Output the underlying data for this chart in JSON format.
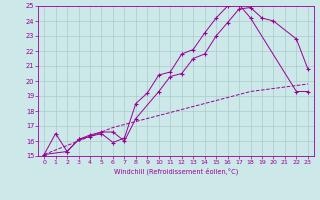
{
  "xlabel": "Windchill (Refroidissement éolien,°C)",
  "bg_color": "#cce8e8",
  "line_color": "#990099",
  "grid_color": "#aacccc",
  "xlim": [
    -0.5,
    23.5
  ],
  "ylim": [
    15,
    25
  ],
  "yticks": [
    15,
    16,
    17,
    18,
    19,
    20,
    21,
    22,
    23,
    24,
    25
  ],
  "xticks": [
    0,
    1,
    2,
    3,
    4,
    5,
    6,
    7,
    8,
    9,
    10,
    11,
    12,
    13,
    14,
    15,
    16,
    17,
    18,
    19,
    20,
    21,
    22,
    23
  ],
  "line1_x": [
    0,
    1,
    2,
    3,
    4,
    5,
    6,
    7,
    8,
    9,
    10,
    11,
    12,
    13,
    14,
    15,
    16,
    17,
    18,
    22,
    23
  ],
  "line1_y": [
    15.1,
    16.5,
    15.3,
    16.1,
    16.3,
    16.5,
    15.9,
    16.2,
    18.5,
    19.2,
    20.4,
    20.6,
    21.8,
    22.1,
    23.2,
    24.2,
    25.0,
    25.1,
    24.2,
    19.3,
    19.3
  ],
  "line2_x": [
    0,
    2,
    3,
    4,
    5,
    6,
    7,
    8,
    10,
    11,
    12,
    13,
    14,
    15,
    16,
    17,
    18,
    19,
    20,
    22,
    23
  ],
  "line2_y": [
    15.1,
    15.3,
    16.1,
    16.4,
    16.6,
    16.6,
    16.0,
    17.5,
    19.3,
    20.3,
    20.5,
    21.5,
    21.8,
    23.0,
    23.9,
    24.8,
    24.9,
    24.2,
    24.0,
    22.8,
    20.8
  ],
  "line3_x": [
    0,
    1,
    2,
    3,
    4,
    5,
    6,
    7,
    8,
    9,
    10,
    11,
    12,
    13,
    14,
    15,
    16,
    17,
    18,
    19,
    20,
    21,
    22,
    23
  ],
  "line3_y": [
    15.1,
    15.4,
    15.7,
    16.0,
    16.3,
    16.6,
    16.9,
    17.1,
    17.3,
    17.5,
    17.7,
    17.9,
    18.1,
    18.3,
    18.5,
    18.7,
    18.9,
    19.1,
    19.3,
    19.4,
    19.5,
    19.6,
    19.7,
    19.8
  ]
}
